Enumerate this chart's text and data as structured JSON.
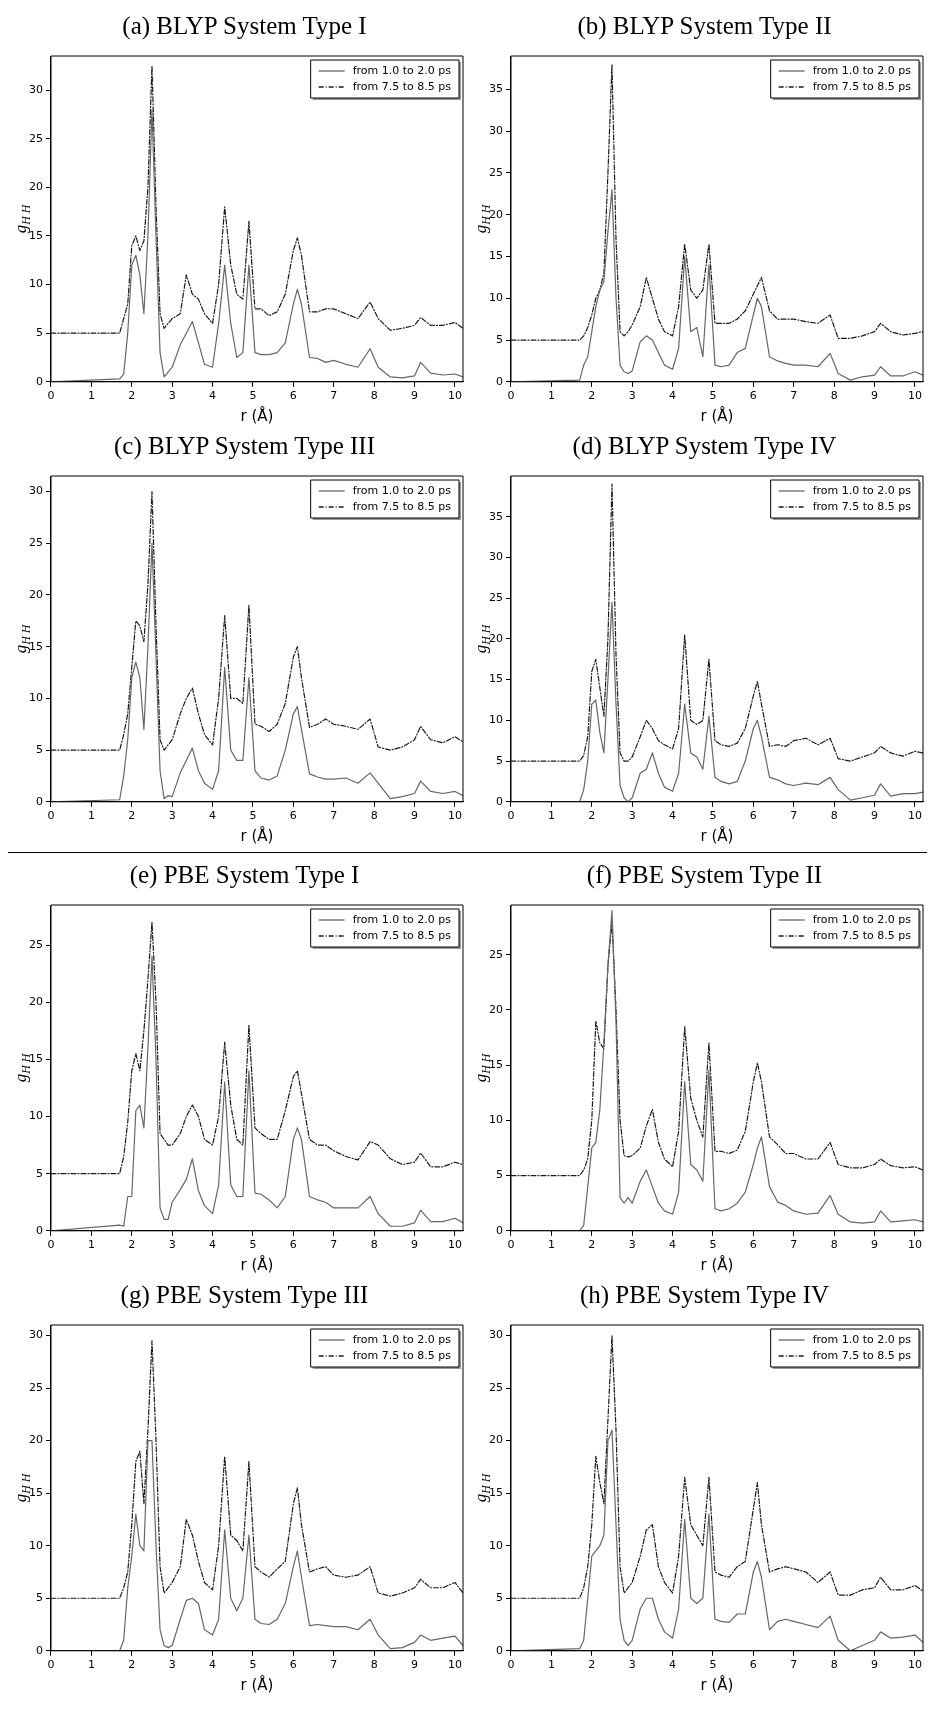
{
  "chart_data": [
    {
      "type": "line",
      "title": "(a) BLYP System Type I",
      "xlabel": "r (Å)",
      "ylabel": "g$_{H H}$",
      "legend": "top right",
      "xlim": [
        0,
        10.2
      ],
      "xticks": [
        0,
        1,
        2,
        3,
        4,
        5,
        6,
        7,
        8,
        9,
        10
      ],
      "ylim": [
        0,
        33.5
      ],
      "yticks": [
        0,
        5,
        10,
        15,
        20,
        25,
        30
      ],
      "x": [
        0,
        1.7,
        1.8,
        1.9,
        2.0,
        2.1,
        2.2,
        2.3,
        2.4,
        2.5,
        2.6,
        2.7,
        2.8,
        2.9,
        3.0,
        3.2,
        3.35,
        3.5,
        3.65,
        3.8,
        4.0,
        4.15,
        4.3,
        4.45,
        4.6,
        4.75,
        4.9,
        5.05,
        5.2,
        5.4,
        5.6,
        5.8,
        6.0,
        6.1,
        6.2,
        6.4,
        6.6,
        6.8,
        7.0,
        7.3,
        7.6,
        7.9,
        8.1,
        8.4,
        8.7,
        9.0,
        9.15,
        9.4,
        9.7,
        10.0,
        10.2
      ],
      "series": [
        {
          "name": "from 1.0 to 2.0 ps",
          "color": "#666666",
          "line_style": "solid",
          "values": [
            0,
            0.3,
            0.8,
            5,
            12,
            13,
            11,
            7,
            15,
            28,
            15,
            3,
            0.5,
            1,
            1.5,
            3.8,
            5,
            6.2,
            4,
            1.8,
            1.5,
            6,
            12,
            6,
            2.5,
            3,
            12,
            3,
            2.8,
            2.8,
            3,
            4,
            8,
            9.5,
            8,
            2.5,
            2.4,
            2,
            2.2,
            1.8,
            1.5,
            3.4,
            1.5,
            0.5,
            0.4,
            0.6,
            2,
            0.9,
            0.7,
            0.8,
            0.5
          ]
        },
        {
          "name": "from 7.5 to 8.5 ps",
          "color": "#1a1a1a",
          "line_style": "dashed",
          "values": [
            5,
            5,
            6.5,
            8,
            14,
            15,
            13.5,
            14.5,
            20,
            32.5,
            18,
            7,
            5.5,
            6,
            6.5,
            7,
            11,
            9,
            8.5,
            7,
            6,
            10,
            18,
            12,
            9,
            8.5,
            16.5,
            7.5,
            7.5,
            6.8,
            7.2,
            9,
            13.5,
            14.8,
            13,
            7.2,
            7.2,
            7.5,
            7.5,
            7,
            6.5,
            8.2,
            6.5,
            5.3,
            5.5,
            5.8,
            6.6,
            5.8,
            5.8,
            6.1,
            5.5
          ]
        }
      ]
    },
    {
      "type": "line",
      "title": "(b) BLYP System Type II",
      "xlabel": "r (Å)",
      "ylabel": "g$_{H H}$",
      "legend": "top right",
      "xlim": [
        0,
        10.2
      ],
      "xticks": [
        0,
        1,
        2,
        3,
        4,
        5,
        6,
        7,
        8,
        9,
        10
      ],
      "ylim": [
        0,
        39
      ],
      "yticks": [
        0,
        5,
        10,
        15,
        20,
        25,
        30,
        35
      ],
      "x": [
        0,
        1.7,
        1.8,
        1.9,
        2.0,
        2.1,
        2.2,
        2.3,
        2.4,
        2.5,
        2.6,
        2.7,
        2.8,
        2.9,
        3.0,
        3.2,
        3.35,
        3.5,
        3.65,
        3.8,
        4.0,
        4.15,
        4.3,
        4.45,
        4.6,
        4.75,
        4.9,
        5.05,
        5.2,
        5.4,
        5.6,
        5.8,
        6.0,
        6.1,
        6.2,
        6.4,
        6.6,
        6.8,
        7.0,
        7.3,
        7.6,
        7.9,
        8.1,
        8.4,
        8.7,
        9.0,
        9.15,
        9.4,
        9.7,
        10.0,
        10.2
      ],
      "series": [
        {
          "name": "from 1.0 to 2.0 ps",
          "color": "#666666",
          "line_style": "solid",
          "values": [
            0,
            0.2,
            2,
            3,
            6,
            9,
            11,
            12,
            18,
            23,
            10,
            2,
            1.2,
            1,
            1.3,
            4.8,
            5.5,
            5,
            3.5,
            2,
            1.5,
            4,
            15,
            6,
            6.5,
            3,
            14,
            2,
            1.8,
            2,
            3.5,
            4,
            8,
            10,
            9,
            3,
            2.5,
            2.2,
            2,
            2,
            1.8,
            3.4,
            1,
            0.2,
            0.6,
            0.8,
            1.8,
            0.7,
            0.7,
            1.2,
            0.8
          ]
        },
        {
          "name": "from 7.5 to 8.5 ps",
          "color": "#1a1a1a",
          "line_style": "dashed",
          "values": [
            5,
            5,
            5.5,
            6.5,
            8,
            10,
            11,
            13,
            25,
            38,
            17,
            6,
            5.5,
            6,
            6.8,
            9,
            12.5,
            10,
            7.5,
            6,
            5.5,
            9,
            16.5,
            11,
            10,
            11,
            16.5,
            7,
            7,
            7,
            7.5,
            8.5,
            10.5,
            11.5,
            12.5,
            8.5,
            7.5,
            7.5,
            7.5,
            7.2,
            7,
            8,
            5.2,
            5.2,
            5.5,
            6,
            7,
            6,
            5.6,
            5.8,
            6
          ]
        }
      ]
    },
    {
      "type": "line",
      "title": "(c) BLYP System Type III",
      "xlabel": "r (Å)",
      "ylabel": "g$_{H H}$",
      "legend": "top right",
      "xlim": [
        0,
        10.2
      ],
      "xticks": [
        0,
        1,
        2,
        3,
        4,
        5,
        6,
        7,
        8,
        9,
        10
      ],
      "ylim": [
        0,
        31.5
      ],
      "yticks": [
        0,
        5,
        10,
        15,
        20,
        25,
        30
      ],
      "x": [
        0,
        1.7,
        1.8,
        1.9,
        2.0,
        2.1,
        2.2,
        2.3,
        2.4,
        2.5,
        2.6,
        2.7,
        2.8,
        2.9,
        3.0,
        3.2,
        3.35,
        3.5,
        3.65,
        3.8,
        4.0,
        4.15,
        4.3,
        4.45,
        4.6,
        4.75,
        4.9,
        5.05,
        5.2,
        5.4,
        5.6,
        5.8,
        6.0,
        6.1,
        6.2,
        6.4,
        6.6,
        6.8,
        7.0,
        7.3,
        7.6,
        7.9,
        8.1,
        8.4,
        8.7,
        9.0,
        9.15,
        9.4,
        9.7,
        10.0,
        10.2
      ],
      "series": [
        {
          "name": "from 1.0 to 2.0 ps",
          "color": "#666666",
          "line_style": "solid",
          "values": [
            0,
            0.2,
            2.5,
            6,
            12,
            13.5,
            12,
            7,
            15,
            25,
            14,
            3,
            0.3,
            0.6,
            0.5,
            2.8,
            4,
            5.2,
            3,
            1.8,
            1.2,
            3,
            13,
            5,
            4,
            4,
            12,
            3,
            2.3,
            2.1,
            2.5,
            5,
            8.5,
            9.2,
            7,
            2.7,
            2.4,
            2.2,
            2.2,
            2.3,
            1.8,
            2.8,
            1.8,
            0.3,
            0.5,
            0.8,
            2,
            1,
            0.8,
            1,
            0.6
          ]
        },
        {
          "name": "from 7.5 to 8.5 ps",
          "color": "#1a1a1a",
          "line_style": "dashed",
          "values": [
            5,
            5,
            6.5,
            8.5,
            13,
            17.5,
            17,
            15.5,
            21,
            30,
            17,
            6,
            5,
            5.5,
            6,
            8.5,
            10,
            11,
            8.5,
            6.5,
            5.5,
            10,
            18,
            10,
            10,
            9.5,
            19,
            7.5,
            7.3,
            6.8,
            7.5,
            9.5,
            14,
            15,
            12,
            7.2,
            7.5,
            8,
            7.5,
            7.3,
            7,
            8,
            5.3,
            5,
            5.3,
            6,
            7.3,
            6,
            5.7,
            6.3,
            5.8
          ]
        }
      ]
    },
    {
      "type": "line",
      "title": "(d) BLYP System Type IV",
      "xlabel": "r (Å)",
      "ylabel": "g$_{H H}$",
      "legend": "top right",
      "xlim": [
        0,
        10.2
      ],
      "xticks": [
        0,
        1,
        2,
        3,
        4,
        5,
        6,
        7,
        8,
        9,
        10
      ],
      "ylim": [
        0,
        40
      ],
      "yticks": [
        0,
        5,
        10,
        15,
        20,
        25,
        30,
        35
      ],
      "x": [
        0,
        1.7,
        1.8,
        1.9,
        2.0,
        2.1,
        2.2,
        2.3,
        2.4,
        2.5,
        2.6,
        2.7,
        2.8,
        2.9,
        3.0,
        3.2,
        3.35,
        3.5,
        3.65,
        3.8,
        4.0,
        4.15,
        4.3,
        4.45,
        4.6,
        4.75,
        4.9,
        5.05,
        5.2,
        5.4,
        5.6,
        5.8,
        6.0,
        6.1,
        6.2,
        6.4,
        6.6,
        6.8,
        7.0,
        7.3,
        7.6,
        7.9,
        8.1,
        8.4,
        8.7,
        9.0,
        9.15,
        9.4,
        9.7,
        10.0,
        10.2
      ],
      "series": [
        {
          "name": "from 1.0 to 2.0 ps",
          "color": "#666666",
          "line_style": "solid",
          "values": [
            0,
            0,
            1.5,
            5,
            12,
            12.5,
            8.5,
            6,
            15,
            24.5,
            12,
            2,
            0.5,
            0,
            0.5,
            3.5,
            4,
            6,
            3.5,
            1.8,
            1.3,
            3.5,
            12,
            6,
            5.5,
            4,
            10.5,
            3,
            2.5,
            2.2,
            2.5,
            5,
            9,
            10,
            8,
            3,
            2.7,
            2.2,
            2,
            2.3,
            2.1,
            3,
            1.5,
            0.2,
            0.5,
            0.8,
            2.2,
            0.7,
            1,
            1,
            1.2
          ]
        },
        {
          "name": "from 7.5 to 8.5 ps",
          "color": "#1a1a1a",
          "line_style": "dashed",
          "values": [
            5,
            5,
            5.7,
            8,
            16,
            17.5,
            14,
            10.5,
            20,
            39,
            18,
            6,
            5,
            5,
            5.5,
            8,
            10,
            9,
            7.5,
            7,
            6.5,
            9,
            20.5,
            10,
            9.5,
            10,
            17.5,
            7.5,
            7,
            6.8,
            7.2,
            9,
            13,
            14.8,
            12,
            6.8,
            7,
            6.8,
            7.5,
            7.8,
            7,
            7.8,
            5.3,
            5,
            5.5,
            6,
            6.8,
            6,
            5.6,
            6.2,
            6
          ]
        }
      ]
    },
    {
      "type": "line",
      "title": "(e) PBE System Type I",
      "xlabel": "r (Å)",
      "ylabel": "g$_{H H}$",
      "legend": "top right",
      "xlim": [
        0,
        10.2
      ],
      "xticks": [
        0,
        1,
        2,
        3,
        4,
        5,
        6,
        7,
        8,
        9,
        10
      ],
      "ylim": [
        0,
        28.5
      ],
      "yticks": [
        0,
        5,
        10,
        15,
        20,
        25
      ],
      "x": [
        0,
        1.7,
        1.8,
        1.9,
        2.0,
        2.1,
        2.2,
        2.3,
        2.4,
        2.5,
        2.6,
        2.7,
        2.8,
        2.9,
        3.0,
        3.2,
        3.35,
        3.5,
        3.65,
        3.8,
        4.0,
        4.15,
        4.3,
        4.45,
        4.6,
        4.75,
        4.9,
        5.05,
        5.2,
        5.4,
        5.6,
        5.8,
        6.0,
        6.1,
        6.2,
        6.4,
        6.6,
        6.8,
        7.0,
        7.3,
        7.6,
        7.9,
        8.1,
        8.4,
        8.7,
        9.0,
        9.15,
        9.4,
        9.7,
        10.0,
        10.2
      ],
      "series": [
        {
          "name": "from 1.0 to 2.0 ps",
          "color": "#666666",
          "line_style": "solid",
          "values": [
            0,
            0.5,
            0.4,
            3,
            3,
            10.5,
            11,
            9,
            16,
            24,
            15,
            2,
            1,
            1,
            2.5,
            3.6,
            4.5,
            6.3,
            3.5,
            2.2,
            1.5,
            4,
            13,
            4,
            3,
            3,
            14,
            3.3,
            3.2,
            2.7,
            2,
            3,
            8,
            9,
            8,
            3,
            2.7,
            2.5,
            2,
            2,
            2,
            3,
            1.5,
            0.4,
            0.4,
            0.7,
            1.8,
            0.8,
            0.8,
            1.1,
            0.7
          ]
        },
        {
          "name": "from 7.5 to 8.5 ps",
          "color": "#1a1a1a",
          "line_style": "dashed",
          "values": [
            5,
            5,
            6.5,
            9.5,
            14,
            15.5,
            14,
            17.5,
            22,
            27,
            20,
            8.5,
            8,
            7.5,
            7.5,
            8.5,
            10,
            11,
            10,
            8,
            7.5,
            10,
            16.5,
            11,
            8,
            7.5,
            18,
            9,
            8.5,
            8,
            8,
            10.5,
            13.5,
            14,
            12,
            8,
            7.5,
            7.5,
            7,
            6.5,
            6.2,
            7.8,
            7.5,
            6.3,
            5.8,
            6,
            6.8,
            5.6,
            5.6,
            6,
            5.8
          ]
        }
      ]
    },
    {
      "type": "line",
      "title": "(f) PBE System Type II",
      "xlabel": "r (Å)",
      "ylabel": "g$_{H H}$",
      "legend": "top right",
      "xlim": [
        0,
        10.2
      ],
      "xticks": [
        0,
        1,
        2,
        3,
        4,
        5,
        6,
        7,
        8,
        9,
        10
      ],
      "ylim": [
        0,
        29.5
      ],
      "yticks": [
        0,
        5,
        10,
        15,
        20,
        25
      ],
      "x": [
        0,
        1.7,
        1.8,
        1.9,
        2.0,
        2.1,
        2.2,
        2.3,
        2.4,
        2.5,
        2.6,
        2.7,
        2.8,
        2.9,
        3.0,
        3.2,
        3.35,
        3.5,
        3.65,
        3.8,
        4.0,
        4.15,
        4.3,
        4.45,
        4.6,
        4.75,
        4.9,
        5.05,
        5.2,
        5.4,
        5.6,
        5.8,
        6.0,
        6.1,
        6.2,
        6.4,
        6.6,
        6.8,
        7.0,
        7.3,
        7.6,
        7.9,
        8.1,
        8.4,
        8.7,
        9.0,
        9.15,
        9.4,
        9.7,
        10.0,
        10.2
      ],
      "series": [
        {
          "name": "from 1.0 to 2.0 ps",
          "color": "#666666",
          "line_style": "solid",
          "values": [
            0,
            0,
            0.5,
            4,
            7.5,
            8,
            11,
            17,
            24,
            29,
            19,
            3,
            2.5,
            3,
            2.5,
            4.5,
            5.5,
            4,
            2.5,
            1.8,
            1.5,
            3.5,
            13.5,
            6,
            5.5,
            4.5,
            14.5,
            2,
            1.8,
            2,
            2.5,
            3.5,
            6,
            7.5,
            8.5,
            4,
            2.6,
            2.3,
            1.8,
            1.5,
            1.6,
            3.2,
            1.5,
            0.8,
            0.7,
            0.8,
            1.8,
            0.8,
            0.9,
            1,
            0.8
          ]
        },
        {
          "name": "from 7.5 to 8.5 ps",
          "color": "#1a1a1a",
          "line_style": "dashed",
          "values": [
            5,
            5,
            5.5,
            6.5,
            10,
            19,
            17,
            16.5,
            24,
            28,
            20,
            10,
            6.8,
            6.7,
            6.8,
            7.5,
            9.5,
            11,
            8,
            6.5,
            5.8,
            9,
            18.5,
            12,
            10,
            8.5,
            17,
            7.2,
            7.2,
            7,
            7.3,
            9,
            13.5,
            15.2,
            13.5,
            8.5,
            7.8,
            7,
            7,
            6.5,
            6.5,
            8,
            6,
            5.7,
            5.7,
            6,
            6.5,
            5.9,
            5.7,
            5.8,
            5.5
          ]
        }
      ]
    },
    {
      "type": "line",
      "title": "(g) PBE System Type III",
      "xlabel": "r (Å)",
      "ylabel": "g$_{H H}$",
      "legend": "top right",
      "xlim": [
        0,
        10.2
      ],
      "xticks": [
        0,
        1,
        2,
        3,
        4,
        5,
        6,
        7,
        8,
        9,
        10
      ],
      "ylim": [
        0,
        31
      ],
      "yticks": [
        0,
        5,
        10,
        15,
        20,
        25,
        30
      ],
      "x": [
        0,
        1.7,
        1.8,
        1.9,
        2.0,
        2.1,
        2.2,
        2.3,
        2.4,
        2.5,
        2.6,
        2.7,
        2.8,
        2.9,
        3.0,
        3.2,
        3.35,
        3.5,
        3.65,
        3.8,
        4.0,
        4.15,
        4.3,
        4.45,
        4.6,
        4.75,
        4.9,
        5.05,
        5.2,
        5.4,
        5.6,
        5.8,
        6.0,
        6.1,
        6.2,
        6.4,
        6.6,
        6.8,
        7.0,
        7.3,
        7.6,
        7.9,
        8.1,
        8.4,
        8.7,
        9.0,
        9.15,
        9.4,
        9.7,
        10.0,
        10.2
      ],
      "series": [
        {
          "name": "from 1.0 to 2.0 ps",
          "color": "#666666",
          "line_style": "solid",
          "values": [
            0,
            0,
            1,
            6,
            9,
            13,
            10,
            9.5,
            20,
            20,
            10,
            2,
            0.5,
            0.3,
            0.5,
            3,
            4.8,
            5,
            4.5,
            2,
            1.5,
            3,
            11.5,
            5,
            3.8,
            5,
            11,
            3,
            2.6,
            2.5,
            3,
            4.5,
            8,
            9.5,
            7,
            2.4,
            2.5,
            2.4,
            2.3,
            2.3,
            2,
            3,
            1.5,
            0.2,
            0.3,
            0.8,
            1.5,
            1,
            1.2,
            1.4,
            0.5
          ]
        },
        {
          "name": "from 7.5 to 8.5 ps",
          "color": "#1a1a1a",
          "line_style": "dashed",
          "values": [
            5,
            5,
            6,
            7.5,
            12,
            18,
            19,
            14,
            21,
            29.5,
            20,
            8,
            5.5,
            6,
            6.5,
            8,
            12.5,
            11,
            8.5,
            6.5,
            5.8,
            10,
            18.5,
            11,
            10.5,
            9.5,
            18,
            8,
            7.5,
            7,
            7.8,
            8.5,
            14,
            15.5,
            12,
            7.5,
            7.8,
            8,
            7.2,
            7,
            7.2,
            8,
            5.5,
            5.2,
            5.5,
            6,
            6.8,
            6,
            6,
            6.5,
            5.5
          ]
        }
      ]
    },
    {
      "type": "line",
      "title": "(h) PBE System Type IV",
      "xlabel": "r (Å)",
      "ylabel": "g$_{H H}$",
      "legend": "top right",
      "xlim": [
        0,
        10.2
      ],
      "xticks": [
        0,
        1,
        2,
        3,
        4,
        5,
        6,
        7,
        8,
        9,
        10
      ],
      "ylim": [
        0,
        31
      ],
      "yticks": [
        0,
        5,
        10,
        15,
        20,
        25,
        30
      ],
      "x": [
        0,
        1.7,
        1.8,
        1.9,
        2.0,
        2.1,
        2.2,
        2.3,
        2.4,
        2.5,
        2.6,
        2.7,
        2.8,
        2.9,
        3.0,
        3.2,
        3.35,
        3.5,
        3.65,
        3.8,
        4.0,
        4.15,
        4.3,
        4.45,
        4.6,
        4.75,
        4.9,
        5.05,
        5.2,
        5.4,
        5.6,
        5.8,
        6.0,
        6.1,
        6.2,
        6.4,
        6.6,
        6.8,
        7.0,
        7.3,
        7.6,
        7.9,
        8.1,
        8.4,
        8.7,
        9.0,
        9.15,
        9.4,
        9.7,
        10.0,
        10.2
      ],
      "series": [
        {
          "name": "from 1.0 to 2.0 ps",
          "color": "#666666",
          "line_style": "solid",
          "values": [
            0,
            0.2,
            1,
            5,
            9,
            9.5,
            10,
            11,
            20,
            21,
            12,
            3,
            1,
            0.5,
            1,
            4,
            5,
            5,
            3,
            1.8,
            1.2,
            4,
            12.5,
            5,
            4.5,
            5,
            13,
            3,
            2.8,
            2.7,
            3.5,
            3.5,
            7.5,
            8.5,
            7,
            2,
            2.8,
            3,
            2.8,
            2.5,
            2.2,
            3.3,
            1,
            0,
            0.5,
            1,
            1.8,
            1.2,
            1.3,
            1.5,
            0.8
          ]
        },
        {
          "name": "from 7.5 to 8.5 ps",
          "color": "#1a1a1a",
          "line_style": "dashed",
          "values": [
            5,
            5,
            6,
            8,
            12,
            18.5,
            16,
            14,
            22,
            30,
            21,
            8,
            5.5,
            6,
            6.5,
            9,
            11.5,
            12,
            8,
            6.5,
            5.5,
            9,
            16.5,
            12,
            11,
            10,
            16.5,
            7.5,
            7.2,
            7,
            8,
            8.5,
            13.5,
            16,
            12,
            7.5,
            7.8,
            8,
            7.8,
            7.5,
            6.5,
            7.5,
            5.3,
            5.3,
            5.8,
            6,
            7,
            5.8,
            5.8,
            6.2,
            5.7
          ]
        }
      ]
    }
  ]
}
